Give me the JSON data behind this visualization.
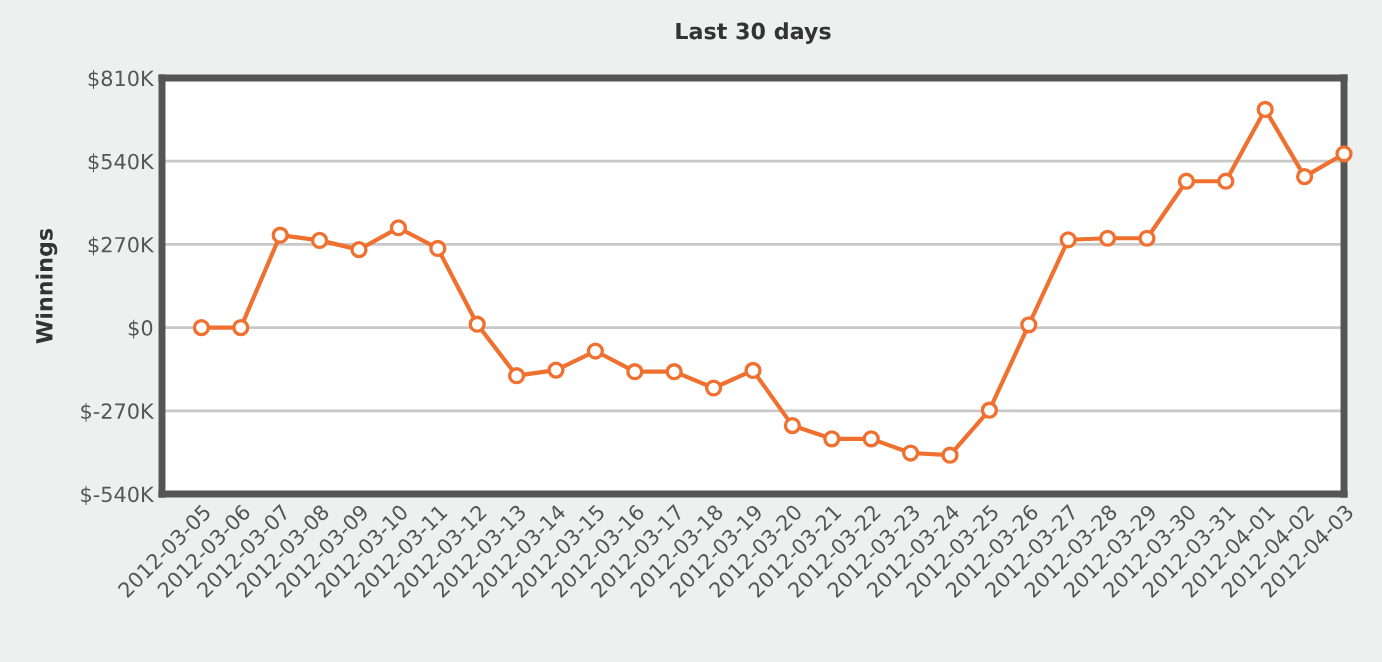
{
  "chart_data": {
    "type": "line",
    "title": "Last 30 days",
    "ylabel": "Winnings",
    "categories": [
      "2012-03-05",
      "2012-03-06",
      "2012-03-07",
      "2012-03-08",
      "2012-03-09",
      "2012-03-10",
      "2012-03-11",
      "2012-03-12",
      "2012-03-13",
      "2012-03-14",
      "2012-03-15",
      "2012-03-16",
      "2012-03-17",
      "2012-03-18",
      "2012-03-19",
      "2012-03-20",
      "2012-03-21",
      "2012-03-22",
      "2012-03-23",
      "2012-03-24",
      "2012-03-25",
      "2012-03-26",
      "2012-03-27",
      "2012-03-28",
      "2012-03-29",
      "2012-03-30",
      "2012-03-31",
      "2012-04-01",
      "2012-04-02",
      "2012-04-03"
    ],
    "series": [
      {
        "color": "#f07030",
        "values": [
          0,
          0,
          300,
          283,
          253,
          324,
          257,
          11,
          -156,
          -138,
          -76,
          -143,
          -143,
          -196,
          -139,
          -318,
          -361,
          -361,
          -407,
          -414,
          -268,
          9,
          285,
          290,
          290,
          475,
          475,
          708,
          490,
          564
        ]
      }
    ],
    "ylim": [
      -540,
      810
    ],
    "yticks": [
      {
        "value": -540,
        "label": "$-540K"
      },
      {
        "value": -270,
        "label": "$-270K"
      },
      {
        "value": 0,
        "label": "$0"
      },
      {
        "value": 270,
        "label": "$270K"
      },
      {
        "value": 540,
        "label": "$540K"
      },
      {
        "value": 810,
        "label": "$810K"
      }
    ],
    "grid": "y",
    "marker": "circle",
    "line_style": "solid"
  }
}
